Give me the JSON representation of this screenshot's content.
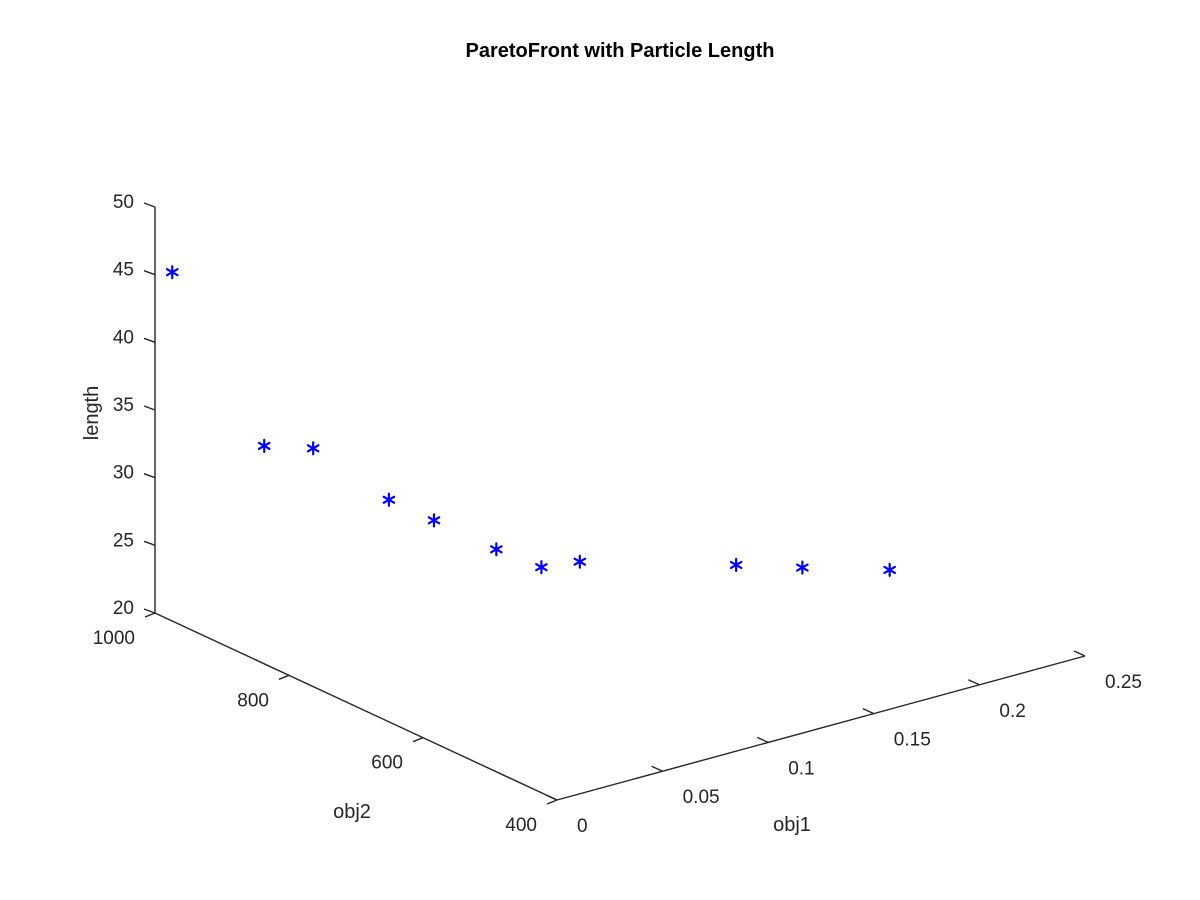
{
  "chart_data": {
    "type": "scatter",
    "projection": "3d",
    "title": "ParetoFront with Particle Length",
    "xlabel": "obj1",
    "ylabel": "obj2",
    "zlabel": "length",
    "xlim": [
      0,
      0.25
    ],
    "ylim": [
      400,
      1000
    ],
    "zlim": [
      20,
      50
    ],
    "x_ticks": [
      "0",
      "0.05",
      "0.1",
      "0.15",
      "0.2",
      "0.25"
    ],
    "y_ticks": [
      "400",
      "600",
      "800",
      "1000"
    ],
    "z_ticks": [
      "20",
      "25",
      "30",
      "35",
      "40",
      "45",
      "50"
    ],
    "grid": false,
    "marker": "*",
    "marker_color": "#0000ff",
    "axis_color": "#262626",
    "points": [
      {
        "x": 0.005,
        "y": 990,
        "z": 45.2
      },
      {
        "x": 0.02,
        "y": 900,
        "z": 33.8
      },
      {
        "x": 0.04,
        "y": 890,
        "z": 33.0
      },
      {
        "x": 0.06,
        "y": 840,
        "z": 29.5
      },
      {
        "x": 0.075,
        "y": 820,
        "z": 27.8
      },
      {
        "x": 0.095,
        "y": 790,
        "z": 25.5
      },
      {
        "x": 0.11,
        "y": 770,
        "z": 24.0
      },
      {
        "x": 0.125,
        "y": 760,
        "z": 24.0
      },
      {
        "x": 0.18,
        "y": 700,
        "z": 22.8
      },
      {
        "x": 0.205,
        "y": 680,
        "z": 22.0
      },
      {
        "x": 0.24,
        "y": 660,
        "z": 20.8
      }
    ]
  }
}
